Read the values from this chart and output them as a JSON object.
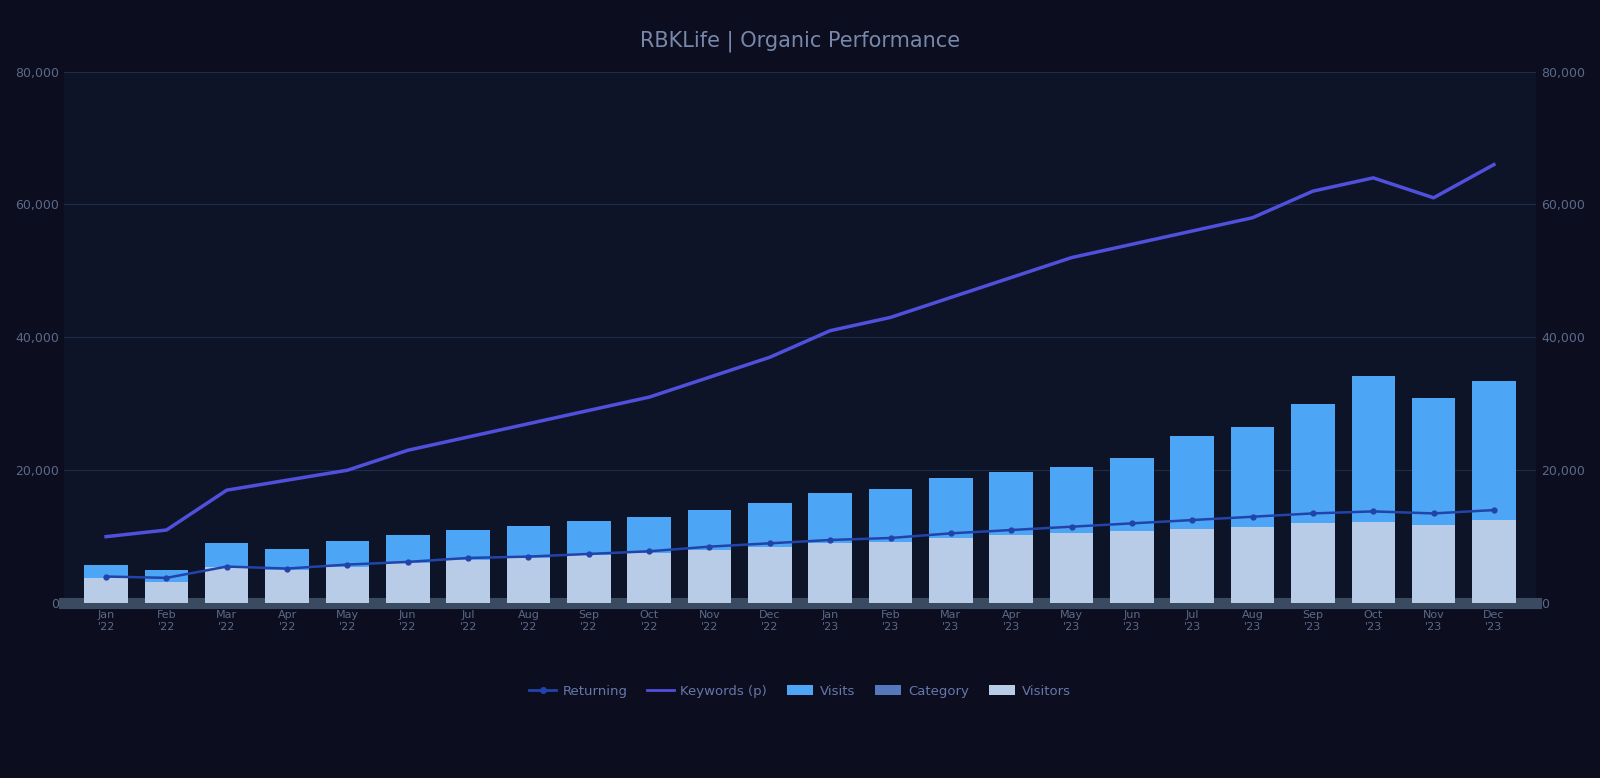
{
  "title": "RBKLife | Organic Performance",
  "months": [
    "Jan\n'22",
    "Feb\n'22",
    "Mar\n'22",
    "Apr\n'22",
    "May\n'22",
    "Jun\n'22",
    "Jul\n'22",
    "Aug\n'22",
    "Sep\n'22",
    "Oct\n'22",
    "Nov\n'22",
    "Dec\n'22",
    "Jan\n'23",
    "Feb\n'23",
    "Mar\n'23",
    "Apr\n'23",
    "May\n'23",
    "Jun\n'23",
    "Jul\n'23",
    "Aug\n'23",
    "Sep\n'23",
    "Oct\n'23",
    "Nov\n'23",
    "Dec\n'23"
  ],
  "returning_visitors": [
    3800,
    3200,
    5500,
    5000,
    5500,
    6000,
    6500,
    6800,
    7200,
    7500,
    8000,
    8500,
    9000,
    9200,
    9800,
    10200,
    10500,
    10800,
    11200,
    11500,
    12000,
    12200,
    11800,
    12500
  ],
  "new_visitors": [
    2000,
    1800,
    3500,
    3200,
    3800,
    4200,
    4500,
    4800,
    5200,
    5500,
    6000,
    6500,
    7500,
    8000,
    9000,
    9500,
    10000,
    11000,
    14000,
    15000,
    18000,
    22000,
    19000,
    21000
  ],
  "keywords_line": [
    10000,
    11000,
    17000,
    18500,
    20000,
    23000,
    25000,
    27000,
    29000,
    31000,
    34000,
    37000,
    41000,
    43000,
    46000,
    49000,
    52000,
    54000,
    56000,
    58000,
    62000,
    64000,
    61000,
    66000
  ],
  "clicks_line": [
    4000,
    3800,
    5500,
    5200,
    5800,
    6200,
    6800,
    7000,
    7400,
    7800,
    8500,
    9000,
    9500,
    9800,
    10500,
    11000,
    11500,
    12000,
    12500,
    13000,
    13500,
    13800,
    13500,
    14000
  ],
  "ylim": [
    0,
    80000
  ],
  "yticks": [
    0,
    20000,
    40000,
    60000,
    80000
  ],
  "bar_color_new": "#4da6f5",
  "bar_color_returning": "#b8cce8",
  "line_color_keywords": "#5050dd",
  "line_color_clicks": "#2244aa",
  "background_color": "#0d0d20",
  "plot_bg_color": "#0d1428",
  "grid_color": "#1e2d4a",
  "title_color": "#7788aa",
  "axis_label_color": "#5a6a88",
  "bottom_bar_color": "#4a5e7a",
  "legend_label_color": "#6677aa"
}
